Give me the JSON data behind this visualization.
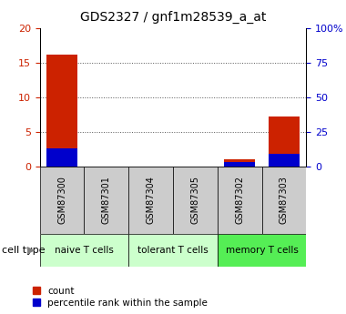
{
  "title": "GDS2327 / gnf1m28539_a_at",
  "samples": [
    "GSM87300",
    "GSM87301",
    "GSM87304",
    "GSM87305",
    "GSM87302",
    "GSM87303"
  ],
  "count_values": [
    16.2,
    0,
    0,
    0,
    1.0,
    7.2
  ],
  "percentile_values": [
    13.0,
    0,
    0,
    0,
    3.0,
    9.0
  ],
  "ylim_left": [
    0,
    20
  ],
  "ylim_right": [
    0,
    100
  ],
  "yticks_left": [
    0,
    5,
    10,
    15,
    20
  ],
  "yticks_right": [
    0,
    25,
    50,
    75,
    100
  ],
  "ytick_labels_right": [
    "0",
    "25",
    "50",
    "75",
    "100%"
  ],
  "count_color": "#cc2200",
  "percentile_color": "#0000cc",
  "left_tick_color": "#cc2200",
  "right_tick_color": "#0000cc",
  "grid_color": "#555555",
  "bg_color": "#ffffff",
  "sample_box_color": "#cccccc",
  "group_data": [
    {
      "label": "naive T cells",
      "start": 0,
      "end": 2,
      "color": "#ccffcc"
    },
    {
      "label": "tolerant T cells",
      "start": 2,
      "end": 4,
      "color": "#ccffcc"
    },
    {
      "label": "memory T cells",
      "start": 4,
      "end": 6,
      "color": "#55ee55"
    }
  ],
  "cell_type_label": "cell type",
  "legend_count": "count",
  "legend_pct": "percentile rank within the sample",
  "title_fontsize": 10,
  "axis_fontsize": 8,
  "legend_fontsize": 7.5
}
